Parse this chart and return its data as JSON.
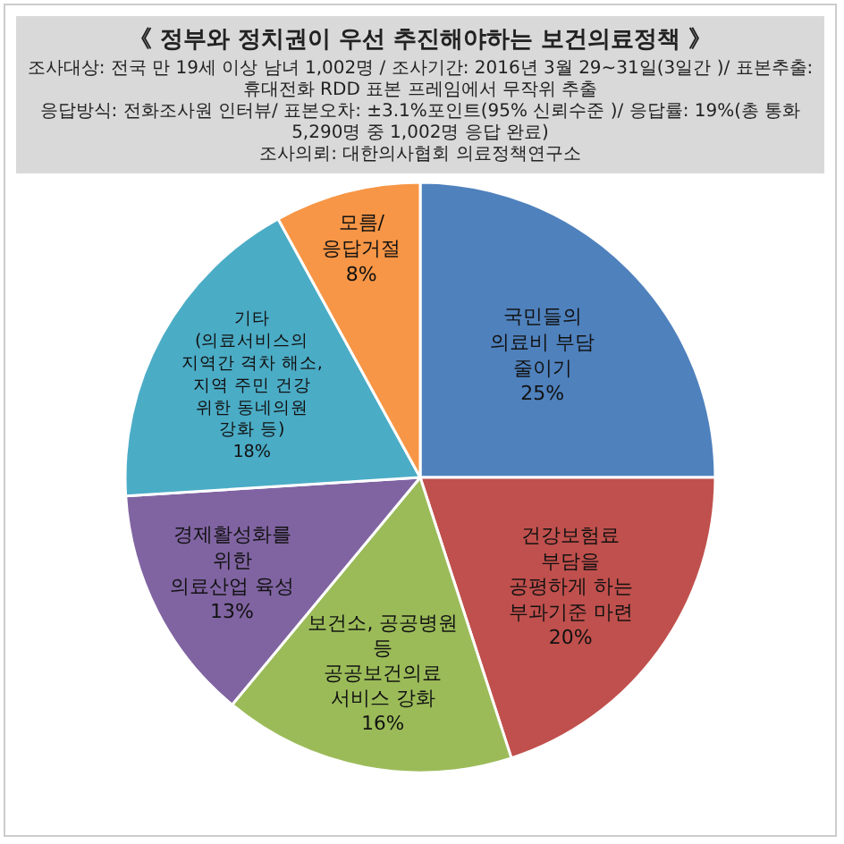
{
  "chart_data": {
    "type": "pie",
    "title": "《 정부와 정치권이 우선 추진해야하는 보건의료정책 》",
    "subtitle": "조사대상: 전국 만 19세 이상 남녀 1,002명 / 조사기간: 2016년 3월 29~31일(3일간 )/ 표본추출: 휴대전화 RDD 표본 프레임에서 무작위 추출\n응답방식: 전화조사원 인터뷰/ 표본오차: ±3.1%포인트(95% 신뢰수준 )/ 응답률: 19%(총 통화 5,290명 중 1,002명 응답 완료)\n조사의뢰: 대한의사협회 의료정책연구소",
    "categories": [
      "국민들의\n의료비 부담\n줄이기",
      "건강보험료\n부담을\n공평하게 하는\n부과기준 마련",
      "보건소, 공공병원\n등\n공공보건의료\n서비스 강화",
      "경제활성화를\n위한\n의료산업 육성",
      "기타\n(의료서비스의\n지역간 격차 해소,\n지역 주민 건강\n위한 동네의원\n강화 등)",
      "모름/\n응답거절"
    ],
    "values": [
      25,
      20,
      16,
      13,
      18,
      8
    ],
    "value_labels": [
      "25%",
      "20%",
      "16%",
      "13%",
      "18%",
      "8%"
    ],
    "colors": [
      "#4f81bd",
      "#c0504d",
      "#9bbb59",
      "#8064a2",
      "#4bacc6",
      "#f79646"
    ]
  }
}
